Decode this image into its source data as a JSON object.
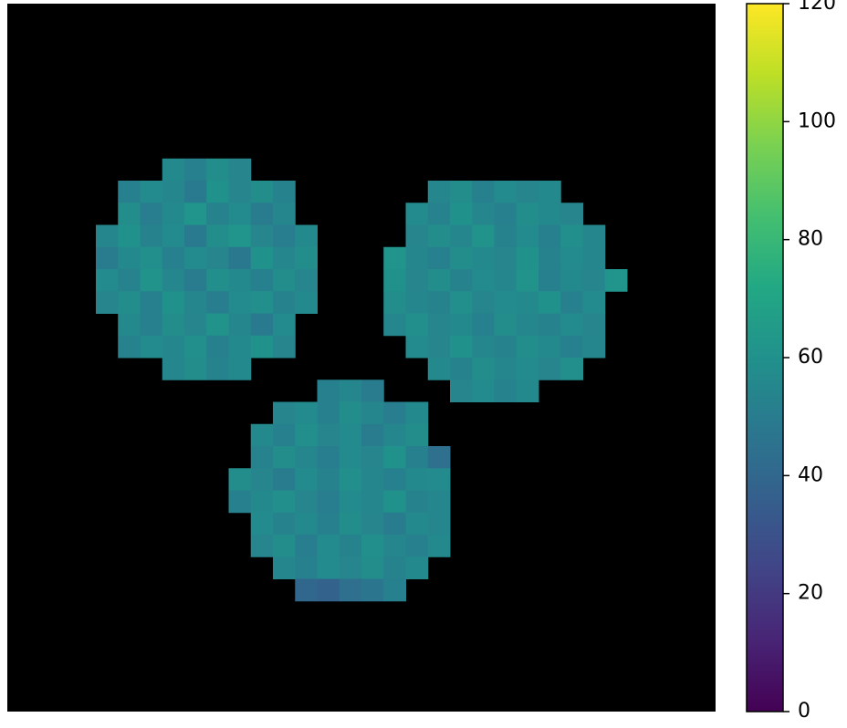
{
  "chart_data": {
    "type": "heatmap",
    "colormap": "viridis",
    "masked_color": "#000000",
    "clim": [
      0,
      120
    ],
    "cticks": [
      0,
      20,
      40,
      60,
      80,
      100,
      120
    ],
    "z": [
      [
        null,
        null,
        null,
        null,
        null,
        null,
        null,
        null,
        null,
        null,
        null,
        null,
        null,
        null,
        null,
        null,
        null,
        null,
        null,
        null,
        null,
        null,
        null,
        null,
        null,
        null,
        null,
        null,
        null,
        null,
        null,
        null
      ],
      [
        null,
        null,
        null,
        null,
        null,
        null,
        null,
        null,
        null,
        null,
        null,
        null,
        null,
        null,
        null,
        null,
        null,
        null,
        null,
        null,
        null,
        null,
        null,
        null,
        null,
        null,
        null,
        null,
        null,
        null,
        null,
        null
      ],
      [
        null,
        null,
        null,
        null,
        null,
        null,
        null,
        null,
        null,
        null,
        null,
        null,
        null,
        null,
        null,
        null,
        null,
        null,
        null,
        null,
        null,
        null,
        null,
        null,
        null,
        null,
        null,
        null,
        null,
        null,
        null,
        null
      ],
      [
        null,
        null,
        null,
        null,
        null,
        null,
        null,
        null,
        null,
        null,
        null,
        null,
        null,
        null,
        null,
        null,
        null,
        null,
        null,
        null,
        null,
        null,
        null,
        null,
        null,
        null,
        null,
        null,
        null,
        null,
        null,
        null
      ],
      [
        null,
        null,
        null,
        null,
        null,
        null,
        null,
        null,
        null,
        null,
        null,
        null,
        null,
        null,
        null,
        null,
        null,
        null,
        null,
        null,
        null,
        null,
        null,
        null,
        null,
        null,
        null,
        null,
        null,
        null,
        null,
        null
      ],
      [
        null,
        null,
        null,
        null,
        null,
        null,
        null,
        null,
        null,
        null,
        null,
        null,
        null,
        null,
        null,
        null,
        null,
        null,
        null,
        null,
        null,
        null,
        null,
        null,
        null,
        null,
        null,
        null,
        null,
        null,
        null,
        null
      ],
      [
        null,
        null,
        null,
        null,
        null,
        null,
        null,
        null,
        null,
        null,
        null,
        null,
        null,
        null,
        null,
        null,
        null,
        null,
        null,
        null,
        null,
        null,
        null,
        null,
        null,
        null,
        null,
        null,
        null,
        null,
        null,
        null
      ],
      [
        null,
        null,
        null,
        null,
        null,
        null,
        null,
        56,
        52,
        58,
        54,
        null,
        null,
        null,
        null,
        null,
        null,
        null,
        null,
        null,
        null,
        null,
        null,
        null,
        null,
        null,
        null,
        null,
        null,
        null,
        null,
        null
      ],
      [
        null,
        null,
        null,
        null,
        null,
        52,
        57,
        55,
        49,
        60,
        54,
        58,
        53,
        null,
        null,
        null,
        null,
        null,
        null,
        55,
        58,
        52,
        57,
        54,
        56,
        null,
        null,
        null,
        null,
        null,
        null,
        null
      ],
      [
        null,
        null,
        null,
        null,
        null,
        58,
        51,
        56,
        62,
        53,
        57,
        50,
        55,
        null,
        null,
        null,
        null,
        null,
        57,
        53,
        60,
        55,
        52,
        58,
        56,
        54,
        null,
        null,
        null,
        null,
        null,
        null
      ],
      [
        null,
        null,
        null,
        null,
        55,
        60,
        53,
        57,
        49,
        58,
        62,
        54,
        51,
        56,
        null,
        null,
        null,
        null,
        54,
        58,
        55,
        61,
        53,
        57,
        52,
        59,
        55,
        null,
        null,
        null,
        null,
        null
      ],
      [
        null,
        null,
        null,
        null,
        50,
        56,
        59,
        52,
        57,
        54,
        48,
        60,
        55,
        58,
        null,
        null,
        null,
        62,
        55,
        52,
        58,
        56,
        54,
        60,
        53,
        57,
        55,
        null,
        null,
        null,
        null,
        null
      ],
      [
        null,
        null,
        null,
        null,
        57,
        53,
        61,
        55,
        50,
        59,
        56,
        52,
        58,
        54,
        null,
        null,
        null,
        60,
        54,
        58,
        53,
        57,
        55,
        61,
        52,
        56,
        54,
        62,
        null,
        null,
        null,
        null
      ],
      [
        null,
        null,
        null,
        null,
        54,
        58,
        52,
        60,
        55,
        51,
        57,
        59,
        53,
        56,
        null,
        null,
        null,
        58,
        55,
        53,
        59,
        54,
        57,
        56,
        60,
        52,
        57,
        null,
        null,
        null,
        null,
        null
      ],
      [
        null,
        null,
        null,
        null,
        null,
        56,
        52,
        58,
        54,
        61,
        55,
        49,
        57,
        null,
        null,
        null,
        null,
        55,
        59,
        54,
        56,
        52,
        58,
        55,
        53,
        57,
        54,
        null,
        null,
        null,
        null,
        null
      ],
      [
        null,
        null,
        null,
        null,
        null,
        53,
        57,
        55,
        59,
        52,
        56,
        60,
        54,
        null,
        null,
        null,
        null,
        null,
        57,
        54,
        60,
        55,
        53,
        58,
        56,
        52,
        55,
        null,
        null,
        null,
        null,
        null
      ],
      [
        null,
        null,
        null,
        null,
        null,
        null,
        null,
        55,
        58,
        53,
        56,
        null,
        null,
        null,
        null,
        null,
        null,
        null,
        null,
        56,
        53,
        58,
        55,
        57,
        54,
        59,
        null,
        null,
        null,
        null,
        null,
        null
      ],
      [
        null,
        null,
        null,
        null,
        null,
        null,
        null,
        null,
        null,
        null,
        null,
        null,
        null,
        null,
        52,
        55,
        50,
        null,
        null,
        null,
        54,
        57,
        53,
        56,
        null,
        null,
        null,
        null,
        null,
        null,
        null,
        null
      ],
      [
        null,
        null,
        null,
        null,
        null,
        null,
        null,
        null,
        null,
        null,
        null,
        null,
        54,
        57,
        52,
        58,
        55,
        51,
        56,
        null,
        null,
        null,
        null,
        null,
        null,
        null,
        null,
        null,
        null,
        null,
        null,
        null
      ],
      [
        null,
        null,
        null,
        null,
        null,
        null,
        null,
        null,
        null,
        null,
        null,
        56,
        52,
        59,
        54,
        57,
        50,
        55,
        58,
        null,
        null,
        null,
        null,
        null,
        null,
        null,
        null,
        null,
        null,
        null,
        null,
        null
      ],
      [
        null,
        null,
        null,
        null,
        null,
        null,
        null,
        null,
        null,
        null,
        null,
        53,
        58,
        55,
        51,
        57,
        54,
        60,
        52,
        44,
        null,
        null,
        null,
        null,
        null,
        null,
        null,
        null,
        null,
        null,
        null,
        null
      ],
      [
        null,
        null,
        null,
        null,
        null,
        null,
        null,
        null,
        null,
        null,
        58,
        54,
        50,
        57,
        53,
        59,
        55,
        52,
        56,
        57,
        null,
        null,
        null,
        null,
        null,
        null,
        null,
        null,
        null,
        null,
        null,
        null
      ],
      [
        null,
        null,
        null,
        null,
        null,
        null,
        null,
        null,
        null,
        null,
        52,
        56,
        59,
        54,
        51,
        57,
        55,
        60,
        53,
        55,
        null,
        null,
        null,
        null,
        null,
        null,
        null,
        null,
        null,
        null,
        null,
        null
      ],
      [
        null,
        null,
        null,
        null,
        null,
        null,
        null,
        null,
        null,
        null,
        null,
        57,
        53,
        56,
        52,
        58,
        54,
        50,
        56,
        55,
        null,
        null,
        null,
        null,
        null,
        null,
        null,
        null,
        null,
        null,
        null,
        null
      ],
      [
        null,
        null,
        null,
        null,
        null,
        null,
        null,
        null,
        null,
        null,
        null,
        54,
        58,
        51,
        57,
        53,
        59,
        55,
        52,
        56,
        null,
        null,
        null,
        null,
        null,
        null,
        null,
        null,
        null,
        null,
        null,
        null
      ],
      [
        null,
        null,
        null,
        null,
        null,
        null,
        null,
        null,
        null,
        null,
        null,
        null,
        55,
        52,
        57,
        54,
        58,
        53,
        56,
        null,
        null,
        null,
        null,
        null,
        null,
        null,
        null,
        null,
        null,
        null,
        null,
        null
      ],
      [
        null,
        null,
        null,
        null,
        null,
        null,
        null,
        null,
        null,
        null,
        null,
        null,
        null,
        40,
        38,
        44,
        47,
        52,
        null,
        null,
        null,
        null,
        null,
        null,
        null,
        null,
        null,
        null,
        null,
        null,
        null,
        null
      ],
      [
        null,
        null,
        null,
        null,
        null,
        null,
        null,
        null,
        null,
        null,
        null,
        null,
        null,
        null,
        null,
        null,
        null,
        null,
        null,
        null,
        null,
        null,
        null,
        null,
        null,
        null,
        null,
        null,
        null,
        null,
        null,
        null
      ],
      [
        null,
        null,
        null,
        null,
        null,
        null,
        null,
        null,
        null,
        null,
        null,
        null,
        null,
        null,
        null,
        null,
        null,
        null,
        null,
        null,
        null,
        null,
        null,
        null,
        null,
        null,
        null,
        null,
        null,
        null,
        null,
        null
      ],
      [
        null,
        null,
        null,
        null,
        null,
        null,
        null,
        null,
        null,
        null,
        null,
        null,
        null,
        null,
        null,
        null,
        null,
        null,
        null,
        null,
        null,
        null,
        null,
        null,
        null,
        null,
        null,
        null,
        null,
        null,
        null,
        null
      ],
      [
        null,
        null,
        null,
        null,
        null,
        null,
        null,
        null,
        null,
        null,
        null,
        null,
        null,
        null,
        null,
        null,
        null,
        null,
        null,
        null,
        null,
        null,
        null,
        null,
        null,
        null,
        null,
        null,
        null,
        null,
        null,
        null
      ],
      [
        null,
        null,
        null,
        null,
        null,
        null,
        null,
        null,
        null,
        null,
        null,
        null,
        null,
        null,
        null,
        null,
        null,
        null,
        null,
        null,
        null,
        null,
        null,
        null,
        null,
        null,
        null,
        null,
        null,
        null,
        null,
        null
      ]
    ]
  }
}
